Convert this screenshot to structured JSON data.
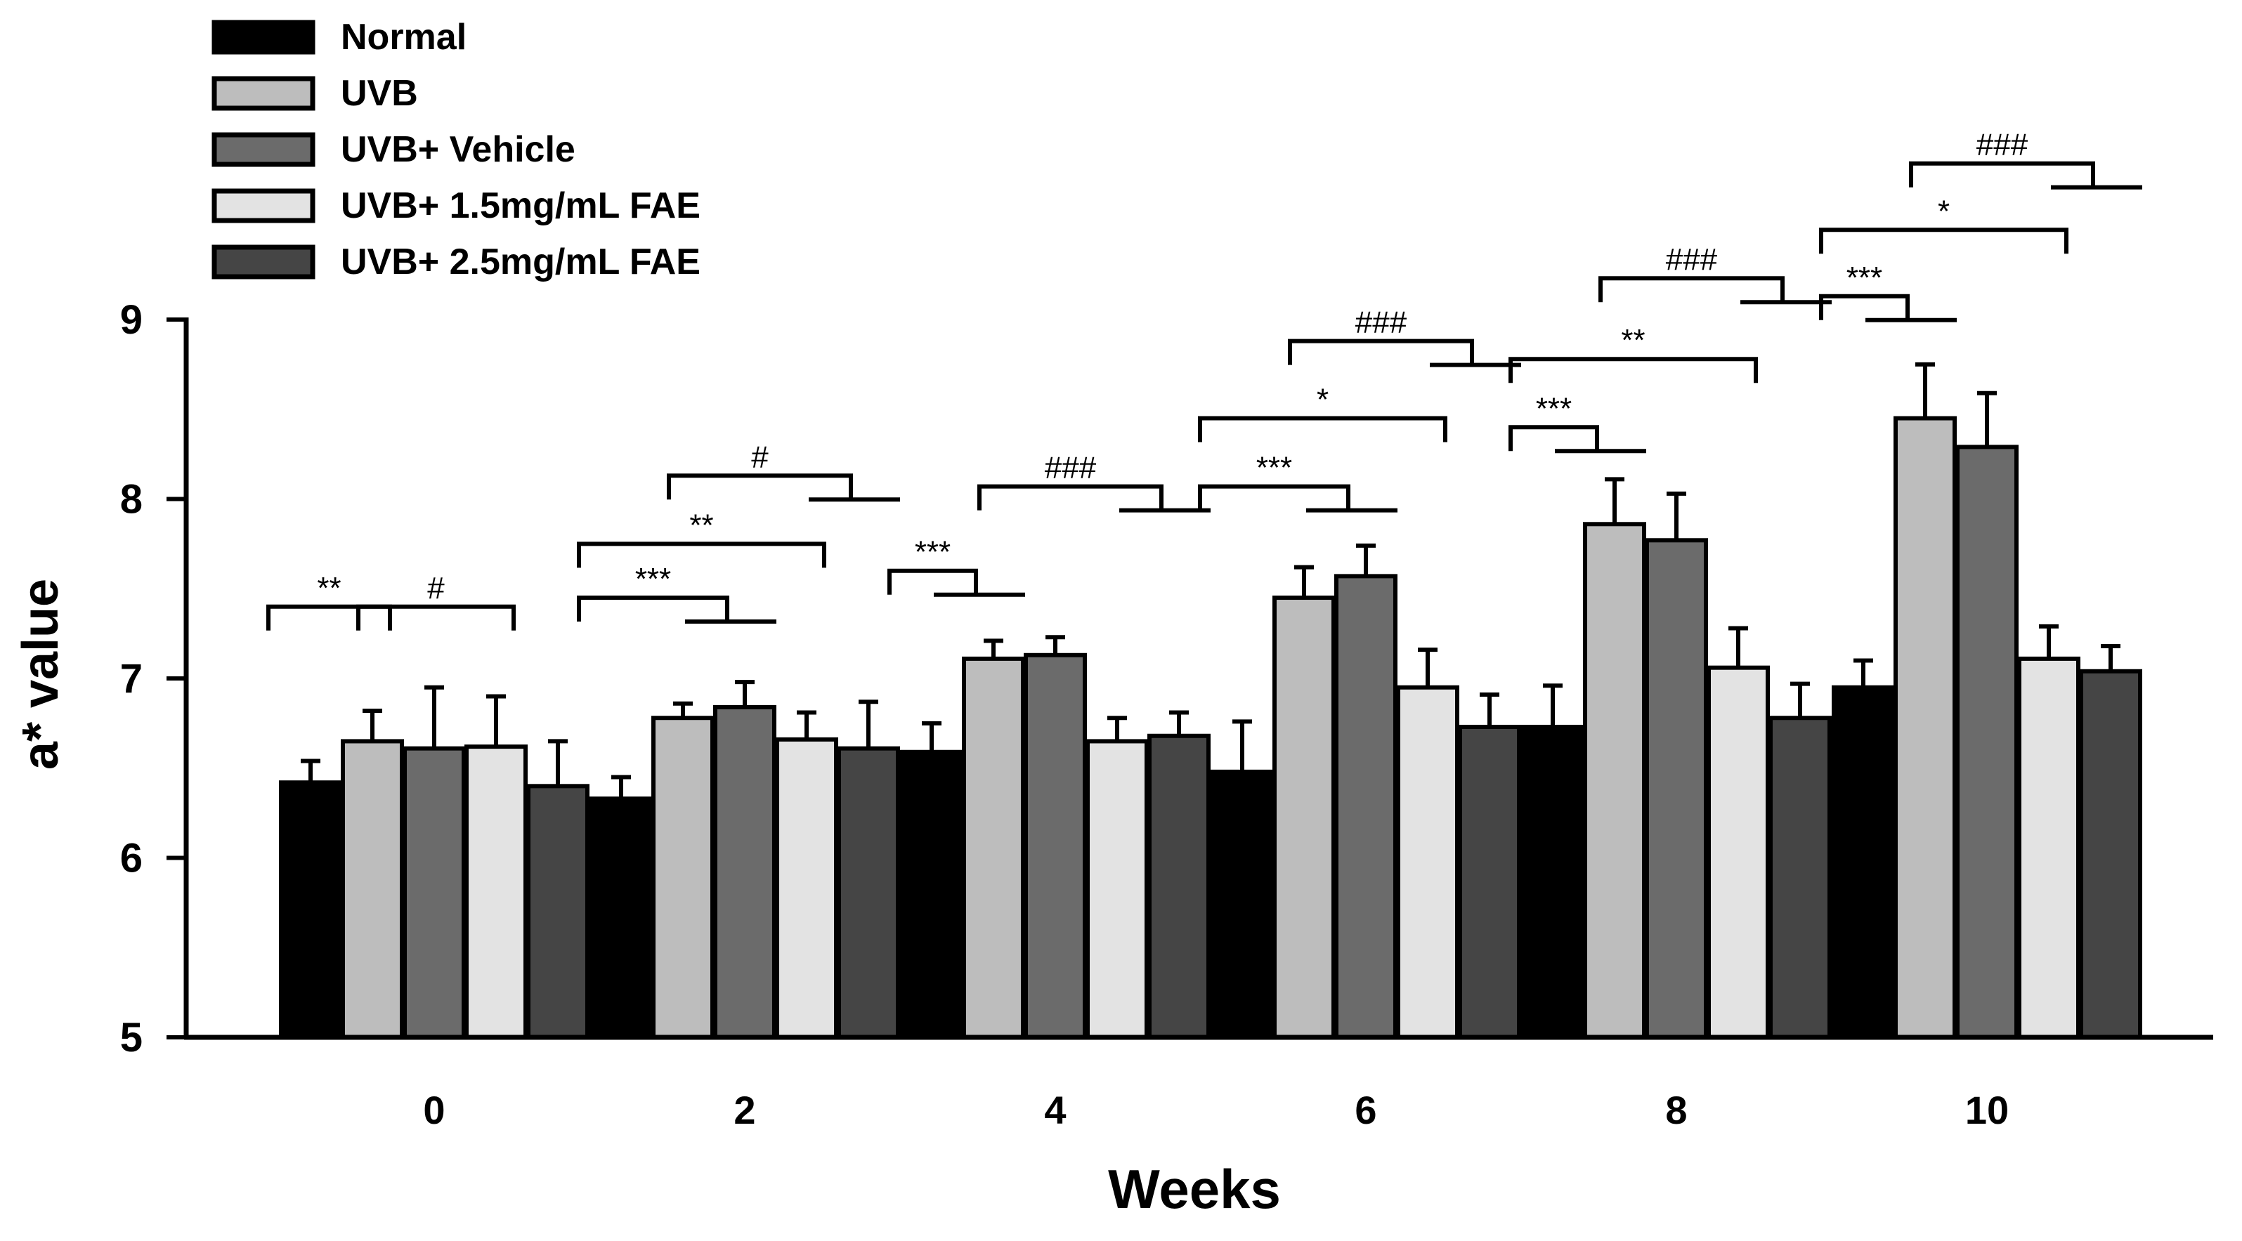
{
  "chart_data": {
    "type": "bar",
    "title": "",
    "xlabel": "Weeks",
    "ylabel": "a* value",
    "categories": [
      "0",
      "2",
      "4",
      "6",
      "8",
      "10"
    ],
    "ylim": [
      5,
      9
    ],
    "yticks": [
      "5",
      "6",
      "7",
      "8",
      "9"
    ],
    "grid": false,
    "legend_position": "top-left",
    "series": [
      {
        "name": "Normal",
        "color": "#000000",
        "values": [
          6.42,
          6.33,
          6.59,
          6.48,
          6.73,
          6.95
        ],
        "errors": [
          0.12,
          0.12,
          0.16,
          0.28,
          0.23,
          0.15
        ]
      },
      {
        "name": "UVB",
        "color": "#bdbdbd",
        "values": [
          6.65,
          6.78,
          7.11,
          7.45,
          7.86,
          8.45
        ],
        "errors": [
          0.17,
          0.08,
          0.1,
          0.17,
          0.25,
          0.3
        ]
      },
      {
        "name": "UVB+ Vehicle",
        "color": "#6b6b6b",
        "values": [
          6.61,
          6.84,
          7.13,
          7.57,
          7.77,
          8.29
        ],
        "errors": [
          0.34,
          0.14,
          0.1,
          0.17,
          0.26,
          0.3
        ]
      },
      {
        "name": "UVB+ 1.5mg/mL FAE",
        "color": "#e3e3e3",
        "values": [
          6.62,
          6.66,
          6.65,
          6.95,
          7.06,
          7.11
        ],
        "errors": [
          0.28,
          0.15,
          0.13,
          0.21,
          0.22,
          0.18
        ]
      },
      {
        "name": "UVB+ 2.5mg/mL FAE",
        "color": "#454545",
        "values": [
          6.4,
          6.61,
          6.68,
          6.73,
          6.78,
          7.04
        ],
        "errors": [
          0.25,
          0.26,
          0.13,
          0.18,
          0.19,
          0.14
        ]
      }
    ],
    "annotations": [
      {
        "group": 0,
        "label": "**",
        "from_bar": 0,
        "to_bar": 1,
        "level": 7.4,
        "style": "bracket"
      },
      {
        "group": 0,
        "label": "#",
        "from_bar": 1,
        "to_bar": 3,
        "level": 7.4,
        "style": "bracket"
      },
      {
        "group": 1,
        "label": "***",
        "from_bar": 0,
        "to_bar": 2,
        "level": 7.45,
        "style": "step"
      },
      {
        "group": 1,
        "label": "**",
        "from_bar": 0,
        "to_bar": 3,
        "level": 7.75,
        "style": "bracket"
      },
      {
        "group": 1,
        "label": "#",
        "from_bar": 1,
        "to_bar": 4,
        "level": 8.13,
        "style": "step"
      },
      {
        "group": 2,
        "label": "***",
        "from_bar": 0,
        "to_bar": 1,
        "level": 7.6,
        "style": "step"
      },
      {
        "group": 2,
        "label": "###",
        "from_bar": 1,
        "to_bar": 4,
        "level": 8.07,
        "style": "step"
      },
      {
        "group": 3,
        "label": "***",
        "from_bar": 0,
        "to_bar": 2,
        "level": 8.07,
        "style": "step"
      },
      {
        "group": 3,
        "label": "*",
        "from_bar": 0,
        "to_bar": 3,
        "level": 8.45,
        "style": "bracket"
      },
      {
        "group": 3,
        "label": "###",
        "from_bar": 1,
        "to_bar": 4,
        "level": 8.88,
        "style": "step"
      },
      {
        "group": 4,
        "label": "***",
        "from_bar": 0,
        "to_bar": 1,
        "level": 8.4,
        "style": "step"
      },
      {
        "group": 4,
        "label": "**",
        "from_bar": 0,
        "to_bar": 3,
        "level": 8.78,
        "style": "bracket"
      },
      {
        "group": 4,
        "label": "###",
        "from_bar": 1,
        "to_bar": 4,
        "level": 9.23,
        "style": "step"
      },
      {
        "group": 5,
        "label": "***",
        "from_bar": 0,
        "to_bar": 1,
        "level": 9.13,
        "style": "step"
      },
      {
        "group": 5,
        "label": "*",
        "from_bar": 0,
        "to_bar": 3,
        "level": 9.5,
        "style": "bracket"
      },
      {
        "group": 5,
        "label": "###",
        "from_bar": 1,
        "to_bar": 4,
        "level": 9.87,
        "style": "step"
      }
    ]
  }
}
